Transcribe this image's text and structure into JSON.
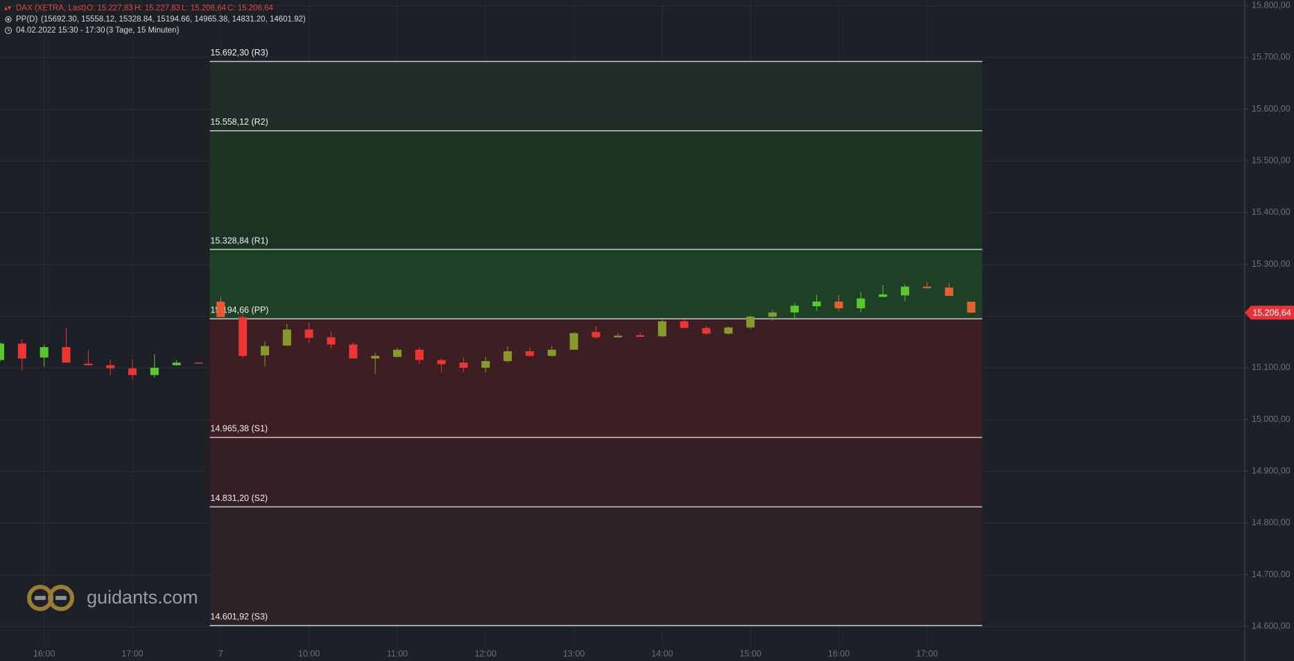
{
  "header": {
    "title": "DAX (XETRA, Last)",
    "open": "O: 15.227,83",
    "high": "H: 15.227,83",
    "low": "L: 15.206,64",
    "close": "C: 15.206,64",
    "indicator": "PP(D)",
    "indicator_values": "(15692.30, 15558.12, 15328.84, 15194.66, 14965.38, 14831.20, 14601.92)",
    "period": "04.02.2022 15:30 - 17:30",
    "period_note": "(3 Tage, 15 Minuten)"
  },
  "watermark": "guidants.com",
  "chart_data": {
    "type": "candlestick",
    "categories": [
      null,
      null,
      "16:00",
      null,
      null,
      null,
      "17:00",
      null,
      null,
      null,
      "7",
      null,
      null,
      null,
      "10:00",
      null,
      null,
      null,
      "11:00",
      null,
      null,
      null,
      "12:00",
      null,
      null,
      null,
      "13:00",
      null,
      null,
      null,
      "14:00",
      null,
      null,
      null,
      "15:00",
      null,
      null,
      null,
      "16:00",
      null,
      null,
      null,
      "17:00",
      null,
      null
    ],
    "open": [
      15115,
      15147,
      15120,
      15140,
      15108,
      15105,
      15099,
      15086,
      15105,
      15110,
      15228,
      15198,
      15124,
      15143,
      15174,
      15159,
      15145,
      15118,
      15121,
      15135,
      15115,
      15110,
      15100,
      15113,
      15132,
      15123,
      15135,
      15169,
      15159,
      15163,
      15161,
      15190,
      15177,
      15166,
      15178,
      15199,
      15207,
      15219,
      15228,
      15215,
      15237,
      15240,
      15257,
      15255,
      15227.83
    ],
    "high": [
      15150,
      15155,
      15145,
      15177,
      15135,
      15116,
      15116,
      15126,
      15115,
      15111,
      15237,
      15206,
      15151,
      15185,
      15188,
      15170,
      15150,
      15129,
      15139,
      15140,
      15118,
      15120,
      15121,
      15142,
      15140,
      15142,
      15169,
      15180,
      15167,
      15169,
      15194,
      15194,
      15180,
      15180,
      15201,
      15212,
      15226,
      15241,
      15241,
      15247,
      15260,
      15261,
      15266,
      15265,
      15227.83
    ],
    "low": [
      15112,
      15094,
      15102,
      15110,
      15104,
      15086,
      15078,
      15081,
      15104,
      15109,
      15198,
      15120,
      15103,
      15142,
      15148,
      15137,
      15118,
      15088,
      15120,
      15108,
      15092,
      15092,
      15091,
      15110,
      15121,
      15121,
      15135,
      15156,
      15159,
      15159,
      15159,
      15177,
      15164,
      15164,
      15175,
      15191,
      15193,
      15210,
      15210,
      15207,
      15237,
      15229,
      15253,
      15239,
      15206.64
    ],
    "close": [
      15147,
      15118,
      15140,
      15110,
      15105,
      15099,
      15086,
      15100,
      15110,
      15110,
      15198,
      15123,
      15142,
      15174,
      15158,
      15145,
      15118,
      15123,
      15135,
      15115,
      15107,
      15100,
      15113,
      15132,
      15123,
      15135,
      15167,
      15159,
      15162,
      15160,
      15190,
      15177,
      15166,
      15178,
      15199,
      15207,
      15220,
      15228,
      15215,
      15234,
      15242,
      15257,
      15254,
      15239,
      15206.64
    ],
    "colors": [
      "#5ac72c",
      "#ee3535",
      "#5ac72c",
      "#ee3535",
      "#ee3535",
      "#ee3535",
      "#ee3535",
      "#5ac72c",
      "#5ac72c",
      "#d84040",
      "#e85a35",
      "#ee3535",
      "#879b2d",
      "#879b2d",
      "#ee3535",
      "#ee3535",
      "#ee3535",
      "#879b2d",
      "#879b2d",
      "#ee3535",
      "#ee3535",
      "#ee3535",
      "#879b2d",
      "#879b2d",
      "#ee3535",
      "#879b2d",
      "#879b2d",
      "#ee3535",
      "#879b2d",
      "#ee3535",
      "#879b2d",
      "#ee3535",
      "#ee3535",
      "#879b2d",
      "#879b2d",
      "#879b2d",
      "#5ac72c",
      "#5ac72c",
      "#e0622d",
      "#5ac72c",
      "#5ac72c",
      "#5ac72c",
      "#e0622d",
      "#e0622d",
      "#e0622d"
    ],
    "pivots": [
      {
        "value": 15692.3,
        "label": "15.692,30 (R3)",
        "zone_color": "#1f2d26"
      },
      {
        "value": 15558.12,
        "label": "15.558,12 (R2)",
        "zone_color": "#1b3323"
      },
      {
        "value": 15328.84,
        "label": "15.328,84 (R1)",
        "zone_color": "#1d4026"
      },
      {
        "value": 15194.66,
        "label": "15.194,66 (PP)",
        "zone_color": "#3d1e22"
      },
      {
        "value": 14965.38,
        "label": "14.965,38 (S1)",
        "zone_color": "#351f24"
      },
      {
        "value": 14831.2,
        "label": "14.831,20 (S2)",
        "zone_color": "#2c2227"
      },
      {
        "value": 14601.92,
        "label": "14.601,92 (S3)"
      }
    ],
    "last_price": {
      "value": 15206.64,
      "label": "15.206,64",
      "color": "#e8323a"
    },
    "ylim": [
      14560,
      15811
    ],
    "yticks": [
      {
        "value": 14600,
        "label": "14.600,00"
      },
      {
        "value": 14700,
        "label": "14.700,00"
      },
      {
        "value": 14800,
        "label": "14.800,00"
      },
      {
        "value": 14900,
        "label": "14.900,00"
      },
      {
        "value": 15000,
        "label": "15.000,00"
      },
      {
        "value": 15100,
        "label": "15.100,00"
      },
      {
        "value": 15200,
        "label": "15.200,00"
      },
      {
        "value": 15300,
        "label": "15.300,00"
      },
      {
        "value": 15400,
        "label": "15.400,00"
      },
      {
        "value": 15500,
        "label": "15.500,00"
      },
      {
        "value": 15600,
        "label": "15.600,00"
      },
      {
        "value": 15700,
        "label": "15.700,00"
      },
      {
        "value": 15800,
        "label": "15.800,00"
      }
    ],
    "grid": true
  }
}
